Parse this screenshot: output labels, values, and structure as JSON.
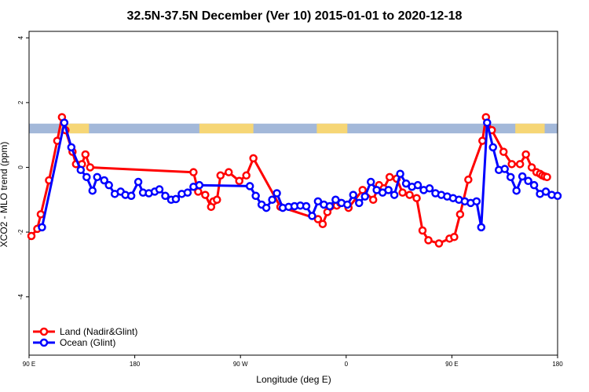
{
  "chart_data": {
    "type": "line",
    "title": "32.5N-37.5N December (Ver 10)   2015-01-01 to 2020-12-18",
    "xlabel": "Longitude (deg E)",
    "ylabel": "XCO2 - MLO trend (ppm)",
    "x_ticks": [
      {
        "value": 90,
        "label": "90 E"
      },
      {
        "value": 180,
        "label": "180"
      },
      {
        "value": 270,
        "label": "90 W"
      },
      {
        "value": 360,
        "label": "0"
      },
      {
        "value": 450,
        "label": "90 E"
      },
      {
        "value": 540,
        "label": "180"
      }
    ],
    "y_ticks": [
      {
        "value": -4,
        "label": "-4"
      },
      {
        "value": -2,
        "label": "-2"
      },
      {
        "value": 0,
        "label": "0"
      },
      {
        "value": 2,
        "label": "2"
      },
      {
        "value": 4,
        "label": "4"
      }
    ],
    "xlim": [
      90,
      540
    ],
    "ylim": [
      -5.8,
      4.2
    ],
    "land_band": {
      "y_range": [
        1.05,
        1.35
      ],
      "ocean_color": "#a3b8d9",
      "land_color": "#f6d676",
      "land_segments": [
        [
          116,
          141
        ],
        [
          235,
          281
        ],
        [
          335,
          361
        ],
        [
          504,
          529
        ]
      ]
    },
    "series": [
      {
        "name": "Land (Nadir&Glint)",
        "color": "#ff0000",
        "x": [
          92,
          97,
          100,
          107,
          114,
          118,
          121,
          127,
          130,
          135,
          138,
          142,
          230,
          234,
          240,
          245,
          247,
          250,
          253,
          260,
          269,
          275,
          281,
          304,
          336,
          340,
          344,
          352,
          355,
          362,
          374,
          383,
          388,
          392,
          397,
          403,
          408,
          414,
          420,
          425,
          430,
          439,
          448,
          452,
          457,
          464,
          476,
          479,
          484,
          494,
          501,
          508,
          513,
          518,
          522,
          525,
          527,
          529,
          531
        ],
        "values": [
          -2.12,
          -1.9,
          -1.45,
          -0.4,
          0.82,
          1.55,
          1.15,
          0.48,
          0.1,
          0.1,
          0.4,
          0.0,
          -0.15,
          -0.75,
          -0.85,
          -1.22,
          -1.05,
          -1.0,
          -0.25,
          -0.15,
          -0.42,
          -0.25,
          0.28,
          -1.22,
          -1.6,
          -1.75,
          -1.38,
          -1.18,
          -1.1,
          -1.25,
          -0.7,
          -1.0,
          -0.55,
          -0.65,
          -0.3,
          -0.35,
          -0.78,
          -0.85,
          -0.95,
          -1.95,
          -2.25,
          -2.35,
          -2.2,
          -2.15,
          -1.45,
          -0.38,
          0.82,
          1.55,
          1.15,
          0.48,
          0.1,
          0.1,
          0.4,
          0.0,
          -0.15,
          -0.2,
          -0.25,
          -0.28,
          -0.3
        ]
      },
      {
        "name": "Ocean (Glint)",
        "color": "#0000ff",
        "x": [
          101,
          120,
          126,
          134,
          139,
          144,
          148,
          154,
          158,
          163,
          168,
          172,
          177,
          183,
          187,
          192,
          197,
          201,
          206,
          211,
          215,
          220,
          225,
          230,
          235,
          278,
          283,
          288,
          292,
          297,
          301,
          306,
          311,
          316,
          321,
          326,
          331,
          336,
          341,
          346,
          351,
          356,
          361,
          366,
          371,
          376,
          381,
          386,
          391,
          396,
          401,
          406,
          411,
          416,
          421,
          426,
          431,
          436,
          441,
          446,
          451,
          456,
          461,
          466,
          471,
          475,
          480,
          485,
          490,
          495,
          500,
          505,
          510,
          515,
          520,
          525,
          530,
          535,
          540
        ],
        "values": [
          -1.85,
          1.38,
          0.62,
          -0.08,
          -0.3,
          -0.72,
          -0.3,
          -0.4,
          -0.55,
          -0.82,
          -0.75,
          -0.85,
          -0.88,
          -0.45,
          -0.78,
          -0.8,
          -0.75,
          -0.68,
          -0.88,
          -1.0,
          -0.98,
          -0.82,
          -0.78,
          -0.6,
          -0.55,
          -0.58,
          -0.88,
          -1.15,
          -1.25,
          -1.0,
          -0.8,
          -1.25,
          -1.22,
          -1.2,
          -1.18,
          -1.2,
          -1.5,
          -1.05,
          -1.15,
          -1.2,
          -1.0,
          -1.1,
          -1.15,
          -0.85,
          -1.1,
          -0.9,
          -0.45,
          -0.7,
          -0.78,
          -0.7,
          -0.85,
          -0.2,
          -0.5,
          -0.6,
          -0.55,
          -0.7,
          -0.65,
          -0.8,
          -0.85,
          -0.9,
          -0.95,
          -1.0,
          -1.05,
          -1.1,
          -1.05,
          -1.85,
          1.38,
          0.62,
          -0.08,
          -0.05,
          -0.3,
          -0.72,
          -0.28,
          -0.42,
          -0.55,
          -0.82,
          -0.75,
          -0.85,
          -0.88
        ]
      }
    ],
    "legend": {
      "placement": "bottom-left",
      "entries": [
        "Land (Nadir&Glint)",
        "Ocean (Glint)"
      ]
    }
  }
}
